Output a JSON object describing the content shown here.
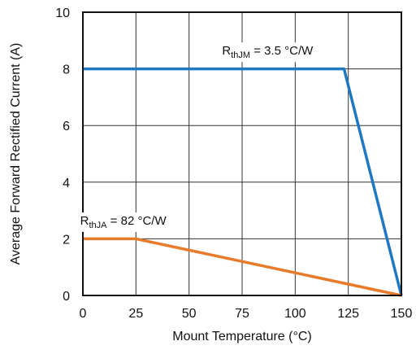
{
  "chart_data": {
    "type": "line",
    "title": "",
    "xlabel": "Mount Temperature (°C)",
    "ylabel": "Average Forward Rectified Current (A)",
    "xlim": [
      0,
      150
    ],
    "ylim": [
      0,
      10
    ],
    "xticks": [
      0,
      25,
      50,
      75,
      100,
      125,
      150
    ],
    "yticks": [
      0,
      2,
      4,
      6,
      8,
      10
    ],
    "xtick_labels": [
      "0",
      "25",
      "50",
      "75",
      "100",
      "125",
      "150"
    ],
    "ytick_labels": [
      "0",
      "2",
      "4",
      "6",
      "8",
      "10"
    ],
    "grid": true,
    "series": [
      {
        "x": [
          0,
          123,
          150
        ],
        "y": [
          8,
          8,
          0
        ],
        "color": "#1f78c1"
      },
      {
        "x": [
          0,
          25,
          150
        ],
        "y": [
          2,
          2,
          0
        ],
        "color": "#e87a2a"
      }
    ],
    "annotations": [
      {
        "main": "R",
        "sub": "thJM",
        "rest": " = 3.5 °C/W",
        "x": 87,
        "y": 8.5
      },
      {
        "main": "R",
        "sub": "thJA",
        "rest": " = 82 °C/W",
        "x": 19,
        "y": 2.5
      }
    ]
  }
}
